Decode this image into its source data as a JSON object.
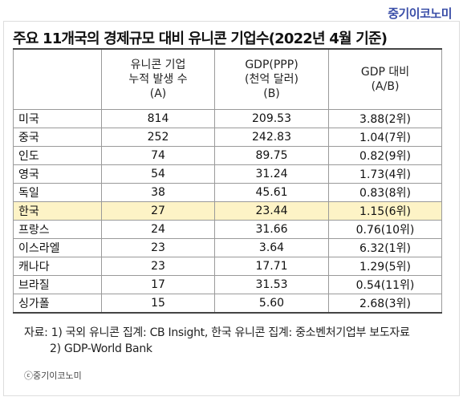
{
  "brand": "중기이코노미",
  "title": "주요 11개국의 경제규모 대비 유니콘 기업수(2022년 4월 기준)",
  "headers": {
    "col1": [
      "유니콘 기업",
      "누적 발생 수",
      "(A)"
    ],
    "col2": [
      "GDP(PPP)",
      "(천억 달러)",
      "(B)"
    ],
    "col3": [
      "GDP 대비",
      "(A/B)"
    ]
  },
  "rows": [
    {
      "country": "미국",
      "unicorns": "814",
      "gdp": "209.53",
      "ratio": "3.88(2위)"
    },
    {
      "country": "중국",
      "unicorns": "252",
      "gdp": "242.83",
      "ratio": "1.04(7위)"
    },
    {
      "country": "인도",
      "unicorns": "74",
      "gdp": "89.75",
      "ratio": "0.82(9위)"
    },
    {
      "country": "영국",
      "unicorns": "54",
      "gdp": "31.24",
      "ratio": "1.73(4위)"
    },
    {
      "country": "독일",
      "unicorns": "38",
      "gdp": "45.61",
      "ratio": "0.83(8위)"
    },
    {
      "country": "한국",
      "unicorns": "27",
      "gdp": "23.44",
      "ratio": "1.15(6위)"
    },
    {
      "country": "프랑스",
      "unicorns": "24",
      "gdp": "31.66",
      "ratio": "0.76(10위)"
    },
    {
      "country": "이스라엘",
      "unicorns": "23",
      "gdp": "3.64",
      "ratio": "6.32(1위)"
    },
    {
      "country": "캐나다",
      "unicorns": "23",
      "gdp": "17.71",
      "ratio": "1.29(5위)"
    },
    {
      "country": "브라질",
      "unicorns": "17",
      "gdp": "31.53",
      "ratio": "0.54(11위)"
    },
    {
      "country": "싱가폴",
      "unicorns": "15",
      "gdp": "5.60",
      "ratio": "2.68(3위)"
    }
  ],
  "highlight_color": "#fdf3c6",
  "brand_color": "#3a4ea8",
  "source_line1": "자료: 1) 국외 유니콘 집계: CB Insight, 한국 유니콘 집계: 중소벤처기업부 보도자료",
  "source_line2": "2) GDP-World Bank",
  "copyright": "ⓒ중기이코노미"
}
